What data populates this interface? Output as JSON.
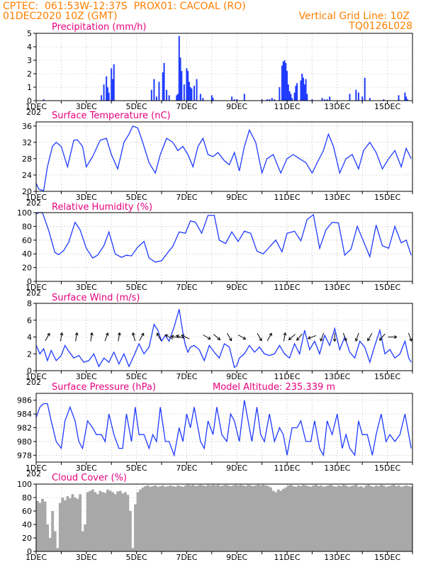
{
  "header": {
    "station_line": "CPTEC:  061:53W-12:37S  PROX01: CACOAL (RO)",
    "run_line": "01DEC2020 10Z (GMT)",
    "grid_note": "Vertical Grid Line: 10Z",
    "code": "TQ0126L028"
  },
  "x_axis": {
    "tick_labels": [
      "1DEC",
      "3DEC",
      "5DEC",
      "7DEC",
      "9DEC",
      "11DEC",
      "13DEC",
      "15DEC"
    ],
    "tick_days": [
      0,
      2,
      4,
      6,
      8,
      10,
      12,
      14
    ],
    "year_fragment": "202",
    "days_span": 15
  },
  "colors": {
    "line": "#1f3bff",
    "bar": "#1f3bff",
    "cloud": "#a8a8a8",
    "title": "#e6007e",
    "header": "#ff7f00",
    "grid": "#999999"
  },
  "chart_data": [
    {
      "type": "bar",
      "title": "Precipitation (mm/h)",
      "ylim": [
        0,
        5
      ],
      "yticks": [
        0,
        1,
        2,
        3,
        4,
        5
      ],
      "x_unit": "days since 01DEC2020 10Z",
      "x": [
        0.3,
        2.6,
        2.7,
        2.8,
        2.85,
        2.9,
        3.0,
        3.05,
        3.1,
        4.6,
        4.7,
        4.8,
        4.9,
        5.05,
        5.1,
        5.2,
        5.3,
        5.6,
        5.65,
        5.7,
        5.75,
        5.8,
        5.9,
        6.0,
        6.05,
        6.1,
        6.15,
        6.2,
        6.3,
        6.4,
        6.55,
        6.65,
        7.0,
        7.05,
        7.8,
        7.9,
        8.0,
        8.3,
        9.0,
        9.2,
        9.3,
        9.4,
        9.5,
        9.7,
        9.8,
        9.85,
        9.9,
        9.95,
        10.0,
        10.05,
        10.1,
        10.15,
        10.2,
        10.3,
        10.35,
        10.4,
        10.55,
        10.6,
        10.65,
        10.7,
        10.75,
        10.8,
        11.0,
        11.4,
        11.5,
        11.6,
        11.7,
        12.5,
        12.75,
        12.85,
        13.0,
        13.1,
        13.3,
        13.85,
        14.45,
        14.7,
        14.75,
        14.8
      ],
      "values": [
        0.1,
        0.4,
        1.2,
        1.8,
        1.0,
        0.6,
        2.4,
        1.6,
        2.7,
        0.8,
        1.6,
        0.3,
        1.4,
        2.1,
        2.8,
        0.8,
        0.4,
        0.4,
        0.5,
        4.8,
        3.2,
        2.2,
        1.2,
        2.4,
        2.2,
        1.4,
        1.0,
        0.9,
        1.1,
        1.6,
        0.5,
        0.2,
        0.4,
        0.2,
        0.3,
        0.1,
        0.1,
        0.5,
        0.1,
        0.1,
        0.1,
        0.2,
        0.1,
        1.0,
        2.6,
        2.9,
        3.0,
        2.8,
        2.2,
        1.2,
        0.7,
        0.5,
        0.2,
        0.6,
        1.1,
        1.3,
        1.5,
        2.0,
        1.7,
        1.2,
        1.6,
        0.5,
        0.1,
        0.2,
        0.1,
        0.1,
        0.3,
        0.5,
        0.8,
        0.6,
        0.3,
        1.7,
        0.2,
        0.1,
        0.4,
        0.6,
        0.3,
        0.1
      ]
    },
    {
      "type": "line",
      "title": "Surface Temperature (nC)",
      "ylim": [
        20,
        37
      ],
      "yticks": [
        20,
        24,
        28,
        32,
        36
      ],
      "x_unit": "days since 01DEC2020 10Z",
      "x": [
        0,
        0.1,
        0.2,
        0.3,
        0.45,
        0.65,
        0.8,
        1.0,
        1.25,
        1.5,
        1.65,
        1.85,
        2.0,
        2.25,
        2.55,
        2.8,
        3.0,
        3.25,
        3.5,
        3.7,
        3.85,
        4.05,
        4.25,
        4.5,
        4.75,
        4.95,
        5.2,
        5.45,
        5.65,
        5.85,
        6.05,
        6.25,
        6.45,
        6.65,
        6.85,
        7.05,
        7.25,
        7.5,
        7.7,
        7.9,
        8.1,
        8.3,
        8.5,
        8.75,
        9.0,
        9.2,
        9.45,
        9.75,
        10.0,
        10.25,
        10.5,
        10.75,
        11.0,
        11.2,
        11.45,
        11.65,
        11.85,
        12.1,
        12.35,
        12.6,
        12.85,
        13.05,
        13.3,
        13.55,
        13.8,
        14.05,
        14.3,
        14.55,
        14.75,
        14.95
      ],
      "values": [
        22,
        20.6,
        20.3,
        20.2,
        26,
        31,
        32,
        31,
        26,
        32.5,
        32.6,
        31,
        26,
        28.5,
        32.5,
        33,
        29,
        25.5,
        32,
        34,
        36,
        35.5,
        32,
        27,
        24.5,
        29,
        33,
        32,
        30,
        31,
        29,
        26,
        31,
        33,
        29,
        28.5,
        29.5,
        27.5,
        26.5,
        29.5,
        25,
        31,
        35,
        32,
        24.5,
        28,
        29,
        24.5,
        28,
        29,
        28,
        27,
        24.5,
        27,
        30,
        34,
        31,
        24.5,
        28,
        29,
        25.5,
        30,
        32,
        29.5,
        25.5,
        28,
        30,
        26,
        30.5,
        28
      ]
    },
    {
      "type": "line",
      "title": "Relative Humidity (%)",
      "ylim": [
        0,
        100
      ],
      "yticks": [
        0,
        20,
        40,
        60,
        80,
        100
      ],
      "x_unit": "days since 01DEC2020 10Z",
      "x": [
        0,
        0.1,
        0.25,
        0.5,
        0.75,
        0.9,
        1.1,
        1.3,
        1.55,
        1.75,
        2.0,
        2.25,
        2.45,
        2.7,
        2.9,
        3.15,
        3.4,
        3.6,
        3.8,
        4.05,
        4.3,
        4.5,
        4.75,
        5.0,
        5.25,
        5.45,
        5.7,
        5.95,
        6.15,
        6.35,
        6.6,
        6.85,
        7.1,
        7.3,
        7.55,
        7.8,
        8.05,
        8.3,
        8.55,
        8.8,
        9.05,
        9.3,
        9.55,
        9.8,
        10.0,
        10.3,
        10.55,
        10.8,
        11.05,
        11.3,
        11.55,
        11.8,
        12.05,
        12.3,
        12.55,
        12.8,
        13.05,
        13.3,
        13.55,
        13.8,
        14.05,
        14.3,
        14.55,
        14.75,
        14.95
      ],
      "values": [
        98,
        100,
        100,
        74,
        42,
        39,
        45,
        57,
        86,
        75,
        48,
        34,
        38,
        52,
        72,
        40,
        35,
        38,
        37,
        50,
        58,
        34,
        28,
        30,
        42,
        51,
        72,
        70,
        88,
        86,
        70,
        96,
        96,
        60,
        55,
        72,
        58,
        73,
        70,
        44,
        40,
        50,
        60,
        43,
        70,
        73,
        59,
        90,
        97,
        48,
        75,
        86,
        85,
        38,
        47,
        80,
        58,
        36,
        82,
        52,
        48,
        80,
        56,
        60,
        38
      ]
    },
    {
      "type": "line",
      "title": "Surface Wind (m/s)",
      "ylim": [
        0,
        8
      ],
      "yticks": [
        0,
        2,
        4,
        6,
        8
      ],
      "x_unit": "days since 01DEC2020 10Z",
      "x": [
        0,
        0.15,
        0.3,
        0.45,
        0.6,
        0.8,
        1.0,
        1.15,
        1.3,
        1.5,
        1.7,
        1.9,
        2.1,
        2.3,
        2.5,
        2.7,
        2.9,
        3.1,
        3.3,
        3.5,
        3.7,
        3.9,
        4.1,
        4.3,
        4.5,
        4.7,
        4.85,
        5.0,
        5.15,
        5.3,
        5.5,
        5.7,
        5.85,
        5.95,
        6.05,
        6.15,
        6.3,
        6.5,
        6.7,
        6.9,
        7.1,
        7.3,
        7.5,
        7.7,
        7.9,
        8.0,
        8.1,
        8.3,
        8.5,
        8.7,
        8.9,
        9.1,
        9.3,
        9.5,
        9.7,
        9.9,
        10.1,
        10.3,
        10.5,
        10.7,
        10.9,
        11.1,
        11.3,
        11.5,
        11.7,
        11.9,
        12.1,
        12.3,
        12.5,
        12.7,
        12.9,
        13.1,
        13.3,
        13.5,
        13.7,
        13.9,
        14.1,
        14.3,
        14.5,
        14.7,
        14.85,
        14.95
      ],
      "values": [
        3,
        2,
        2.6,
        1.2,
        2.4,
        1.2,
        1.8,
        3.0,
        2.3,
        1.5,
        1.8,
        1.0,
        1.2,
        2.0,
        0.5,
        1.5,
        1.0,
        2.2,
        0.8,
        2.0,
        0.5,
        1.8,
        3.2,
        2.0,
        2.8,
        5.5,
        4.8,
        3.5,
        4.2,
        3.5,
        5.2,
        7.3,
        4.5,
        3.0,
        2.2,
        2.8,
        3.0,
        2.5,
        1.2,
        3.0,
        2.2,
        1.5,
        3.2,
        2.8,
        0.4,
        0.6,
        1.5,
        2.0,
        3.0,
        2.2,
        2.8,
        2.0,
        1.8,
        2.0,
        3.0,
        2.0,
        1.5,
        3.2,
        2.0,
        4.8,
        2.5,
        3.5,
        2.0,
        4.2,
        3.0,
        5.0,
        2.5,
        4.0,
        2.2,
        1.5,
        3.5,
        2.8,
        1.0,
        3.0,
        4.8,
        2.0,
        2.5,
        1.5,
        2.0,
        3.5,
        1.5,
        1.0
      ],
      "arrow_days": [
        0.45,
        1.0,
        1.6,
        2.2,
        2.8,
        3.3,
        3.9,
        4.2,
        4.9,
        5.3,
        5.55,
        5.75,
        5.95,
        6.8,
        7.2,
        7.7,
        8.2,
        8.9,
        9.3,
        9.9,
        10.2,
        10.5,
        11.0,
        11.4,
        11.9,
        12.3,
        12.8,
        13.3,
        13.8,
        14.2,
        14.9
      ],
      "arrow_dir_deg": [
        30,
        10,
        10,
        10,
        20,
        10,
        345,
        30,
        330,
        300,
        280,
        290,
        295,
        120,
        130,
        150,
        120,
        150,
        30,
        10,
        230,
        220,
        250,
        200,
        180,
        160,
        200,
        210,
        220,
        90,
        160
      ]
    },
    {
      "type": "line",
      "title": "Surface Pressure (hPa)",
      "subtitle": "Model Altitude: 235.339  m",
      "ylim": [
        977,
        987
      ],
      "yticks": [
        978,
        980,
        982,
        984,
        986
      ],
      "x_unit": "days since 01DEC2020 10Z",
      "x": [
        0,
        0.15,
        0.3,
        0.45,
        0.6,
        0.8,
        1.0,
        1.15,
        1.35,
        1.55,
        1.7,
        1.85,
        2.05,
        2.25,
        2.4,
        2.6,
        2.75,
        2.9,
        3.1,
        3.3,
        3.45,
        3.6,
        3.8,
        3.95,
        4.1,
        4.3,
        4.5,
        4.65,
        4.8,
        4.95,
        5.15,
        5.3,
        5.5,
        5.7,
        5.85,
        6.0,
        6.15,
        6.3,
        6.55,
        6.7,
        6.85,
        7.05,
        7.2,
        7.4,
        7.6,
        7.75,
        7.9,
        8.1,
        8.3,
        8.45,
        8.6,
        8.8,
        8.95,
        9.1,
        9.3,
        9.5,
        9.7,
        9.85,
        10.0,
        10.2,
        10.4,
        10.55,
        10.75,
        10.95,
        11.1,
        11.3,
        11.45,
        11.6,
        11.8,
        12.0,
        12.2,
        12.35,
        12.5,
        12.7,
        12.85,
        13.0,
        13.2,
        13.4,
        13.55,
        13.75,
        13.95,
        14.1,
        14.3,
        14.5,
        14.7,
        14.95
      ],
      "values": [
        983.5,
        985,
        985.5,
        985.5,
        983,
        980,
        979,
        983,
        985,
        983,
        980,
        979,
        983,
        982,
        981,
        981,
        980,
        984,
        981,
        979,
        979,
        984,
        980,
        985,
        981,
        981,
        979,
        981,
        980,
        985,
        980,
        980,
        978,
        982,
        980,
        984,
        982,
        985,
        980,
        979,
        983,
        981,
        985,
        981,
        980,
        984,
        983,
        980,
        986,
        983,
        980,
        985,
        981,
        980,
        984,
        980,
        982,
        981,
        978,
        982,
        982,
        983,
        980,
        980,
        983,
        979,
        978,
        983,
        981,
        984,
        979,
        981,
        979,
        978,
        983,
        981,
        981,
        978,
        981,
        984,
        980,
        981,
        980,
        981,
        984,
        979
      ]
    },
    {
      "type": "bar",
      "title": "Cloud Cover (%)",
      "ylim": [
        0,
        100
      ],
      "yticks": [
        0,
        20,
        40,
        60,
        80,
        100
      ],
      "x_unit": "days since 01DEC2020 10Z",
      "x": [
        0,
        0.1,
        0.2,
        0.3,
        0.4,
        0.5,
        0.6,
        0.7,
        0.8,
        0.9,
        1.0,
        1.1,
        1.2,
        1.3,
        1.4,
        1.5,
        1.6,
        1.7,
        1.8,
        1.9,
        2.0,
        2.1,
        2.2,
        2.3,
        2.4,
        2.5,
        2.6,
        2.7,
        2.8,
        2.9,
        3.0,
        3.1,
        3.2,
        3.3,
        3.4,
        3.5,
        3.6,
        3.7,
        3.8,
        3.9,
        4.0,
        4.1,
        4.2,
        4.3,
        4.4,
        4.5,
        4.6,
        4.7,
        4.8,
        4.9,
        5.0,
        5.1,
        5.2,
        5.3,
        5.4,
        5.5,
        5.6,
        5.7,
        5.8,
        5.9,
        6.0,
        6.1,
        6.2,
        6.3,
        6.4,
        6.5,
        6.6,
        6.7,
        6.8,
        6.9,
        7.0,
        7.1,
        7.2,
        7.3,
        7.4,
        7.5,
        7.6,
        7.7,
        7.8,
        7.9,
        8.0,
        8.1,
        8.2,
        8.3,
        8.4,
        8.5,
        8.6,
        8.7,
        8.8,
        8.9,
        9.0,
        9.1,
        9.2,
        9.3,
        9.4,
        9.5,
        9.6,
        9.7,
        9.8,
        9.9,
        10.0,
        10.1,
        10.2,
        10.3,
        10.4,
        10.5,
        10.6,
        10.7,
        10.8,
        10.9,
        11.0,
        11.1,
        11.2,
        11.3,
        11.4,
        11.5,
        11.6,
        11.7,
        11.8,
        11.9,
        12.0,
        12.1,
        12.2,
        12.3,
        12.4,
        12.5,
        12.6,
        12.7,
        12.8,
        12.9,
        13.0,
        13.1,
        13.2,
        13.3,
        13.4,
        13.5,
        13.6,
        13.7,
        13.8,
        13.9,
        14.0,
        14.1,
        14.2,
        14.3,
        14.4,
        14.5,
        14.6,
        14.7,
        14.8,
        14.9
      ],
      "values": [
        75,
        72,
        78,
        74,
        40,
        20,
        60,
        30,
        5,
        72,
        80,
        76,
        82,
        79,
        85,
        80,
        78,
        85,
        30,
        40,
        88,
        90,
        92,
        88,
        85,
        90,
        88,
        87,
        92,
        90,
        88,
        85,
        89,
        90,
        86,
        88,
        84,
        60,
        5,
        70,
        88,
        92,
        95,
        97,
        98,
        96,
        97,
        98,
        96,
        97,
        98,
        96,
        97,
        98,
        97,
        96,
        98,
        97,
        96,
        98,
        99,
        98,
        99,
        97,
        98,
        99,
        98,
        97,
        99,
        98,
        99,
        98,
        99,
        97,
        98,
        99,
        98,
        97,
        98,
        99,
        98,
        99,
        98,
        97,
        99,
        98,
        97,
        98,
        99,
        98,
        99,
        98,
        97,
        95,
        90,
        88,
        92,
        90,
        93,
        95,
        98,
        99,
        97,
        96,
        98,
        97,
        99,
        98,
        97,
        96,
        98,
        99,
        97,
        98,
        96,
        97,
        98,
        99,
        97,
        96,
        98,
        97,
        99,
        98,
        96,
        97,
        98,
        99,
        96,
        97,
        95,
        98,
        99,
        97,
        96,
        98,
        97,
        99,
        98,
        96,
        97,
        98,
        99,
        97,
        98,
        96,
        97,
        98,
        97,
        96
      ]
    }
  ]
}
